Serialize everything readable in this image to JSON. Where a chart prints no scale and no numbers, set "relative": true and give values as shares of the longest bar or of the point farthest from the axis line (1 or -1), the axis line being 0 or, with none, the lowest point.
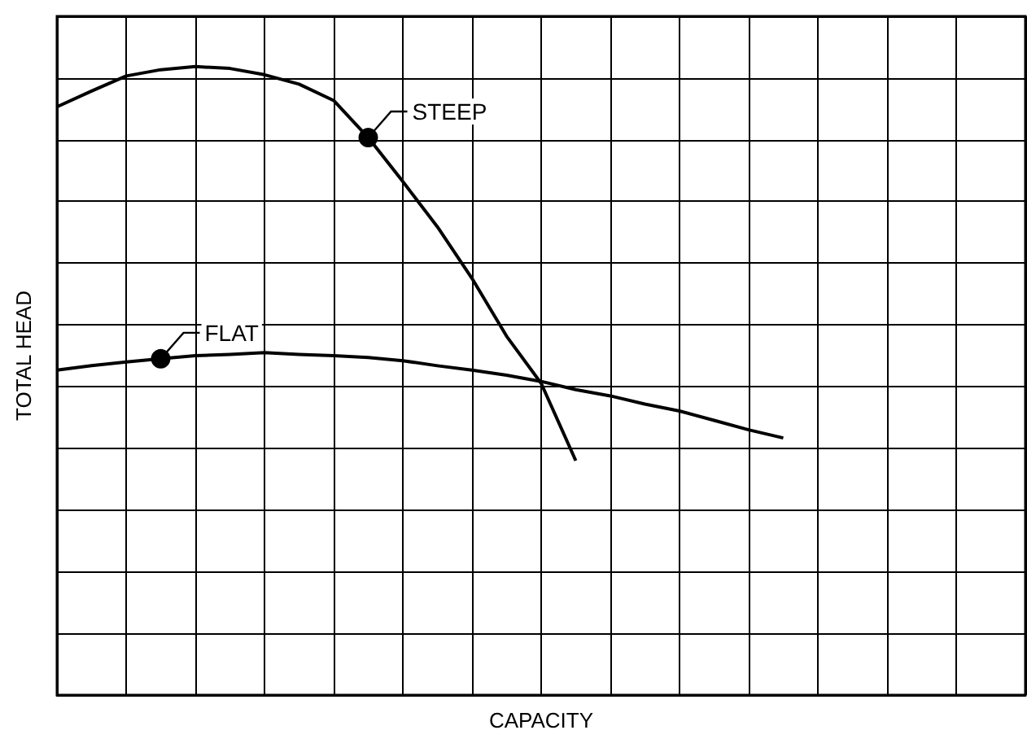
{
  "chart_data": {
    "type": "line",
    "relative": true,
    "xlabel": "CAPACITY",
    "ylabel": "TOTAL HEAD",
    "grid": true,
    "marker": "none",
    "categories": [
      null,
      null,
      null,
      null,
      null,
      null,
      null,
      null,
      null,
      null,
      null,
      null,
      null,
      null,
      null,
      null,
      null,
      null,
      null,
      null,
      null,
      null,
      null,
      null,
      null,
      null,
      null,
      null,
      null
    ],
    "series": [
      {
        "color": "#000000",
        "values": [
          0.936,
          0.961,
          0.985,
          0.995,
          1,
          0.997,
          0.987,
          0.972,
          0.946,
          0.887,
          0.817,
          0.745,
          0.663,
          0.571,
          0.496,
          0.373,
          null,
          null,
          null,
          null,
          null,
          null,
          null,
          null,
          null,
          null,
          null,
          null,
          null
        ]
      },
      {
        "color": "#000000",
        "values": [
          0.517,
          0.524,
          0.53,
          0.535,
          0.54,
          0.542,
          0.545,
          0.542,
          0.54,
          0.537,
          0.532,
          0.524,
          0.517,
          0.509,
          0.499,
          0.486,
          0.476,
          0.463,
          0.452,
          0.437,
          0.422,
          0.409,
          null,
          null,
          null,
          null,
          null,
          null,
          null
        ]
      }
    ],
    "annotations": [
      "STEEP",
      "FLAT"
    ]
  }
}
